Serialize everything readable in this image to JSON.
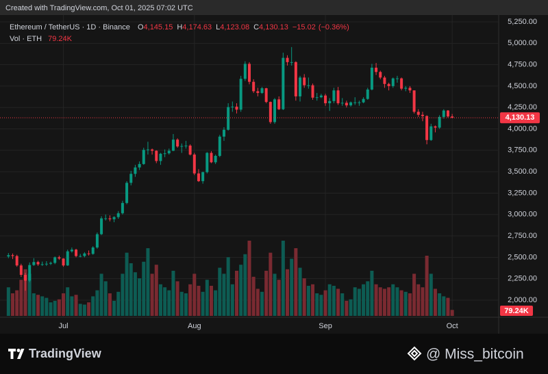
{
  "header": "Created with TradingView.com, Oct 01, 2025 07:02 UTC",
  "chart_data": {
    "type": "candlestick",
    "symbol": "Ethereum / TetherUS · 1D · Binance",
    "legend": [
      {
        "key": "O",
        "value": 4145.15,
        "label": "4,145.15"
      },
      {
        "key": "H",
        "value": 4174.63,
        "label": "4,174.63"
      },
      {
        "key": "L",
        "value": 4123.08,
        "label": "4,123.08"
      },
      {
        "key": "C",
        "value": 4130.13,
        "label": "4,130.13"
      }
    ],
    "change": {
      "value": -15.02,
      "label": "−15.02"
    },
    "change_pct": {
      "value": -0.36,
      "label": "(−0.36%)"
    },
    "volume_title": "Vol · ETH",
    "volume_last": {
      "value": 79.24,
      "label": "79.24K"
    },
    "open": [
      2510,
      2525,
      2515,
      2405,
      2295,
      2228,
      2410,
      2445,
      2418,
      2420,
      2425,
      2435,
      2500,
      2486,
      2405,
      2570,
      2590,
      2515,
      2515,
      2545,
      2540,
      2615,
      2770,
      2955,
      2955,
      2945,
      2970,
      3015,
      3135,
      3370,
      3475,
      3550,
      3590,
      3755,
      3760,
      3745,
      3625,
      3710,
      3715,
      3745,
      3875,
      3795,
      3800,
      3805,
      3700,
      3480,
      3390,
      3495,
      3720,
      3610,
      3685,
      3910,
      3990,
      4255,
      4260,
      4225,
      4585,
      4760,
      4550,
      4440,
      4420,
      4475,
      4315,
      4080,
      4345,
      4230,
      4830,
      4780,
      4780,
      4380,
      4600,
      4510,
      4510,
      4365,
      4370,
      4390,
      4300,
      4325,
      4450,
      4300,
      4305,
      4275,
      4310,
      4310,
      4310,
      4350,
      4460,
      4715,
      4665,
      4600,
      4525,
      4500,
      4590,
      4590,
      4470,
      4480,
      4450,
      4200,
      4165,
      4150,
      3870,
      4030,
      4015,
      4140,
      4215,
      4145.15
    ],
    "high": [
      2550,
      2545,
      2530,
      2425,
      2320,
      2440,
      2490,
      2460,
      2450,
      2455,
      2450,
      2510,
      2520,
      2490,
      2590,
      2615,
      2600,
      2540,
      2560,
      2580,
      2630,
      2790,
      2980,
      3000,
      2990,
      2980,
      3040,
      3160,
      3390,
      3510,
      3580,
      3620,
      3780,
      3850,
      3770,
      3750,
      3720,
      3760,
      3770,
      3940,
      3890,
      3830,
      3860,
      3820,
      3720,
      3530,
      3500,
      3730,
      3740,
      3700,
      3930,
      4020,
      4300,
      4320,
      4300,
      4620,
      4790,
      4780,
      4580,
      4480,
      4490,
      4480,
      4320,
      4360,
      4380,
      4890,
      4860,
      4956,
      4790,
      4620,
      4640,
      4600,
      4530,
      4420,
      4410,
      4410,
      4360,
      4480,
      4490,
      4360,
      4330,
      4320,
      4370,
      4330,
      4370,
      4480,
      4760,
      4770,
      4680,
      4620,
      4540,
      4600,
      4620,
      4600,
      4500,
      4500,
      4450,
      4230,
      4200,
      4160,
      4060,
      4040,
      4160,
      4230,
      4220,
      4174.63
    ],
    "low": [
      2490,
      2480,
      2390,
      2270,
      2110,
      2210,
      2400,
      2400,
      2400,
      2400,
      2410,
      2420,
      2470,
      2390,
      2400,
      2555,
      2500,
      2500,
      2500,
      2520,
      2530,
      2600,
      2760,
      2930,
      2920,
      2910,
      2950,
      3000,
      3120,
      3340,
      3440,
      3520,
      3580,
      3700,
      3700,
      3600,
      3580,
      3670,
      3700,
      3740,
      3780,
      3720,
      3770,
      3690,
      3460,
      3380,
      3360,
      3480,
      3600,
      3590,
      3670,
      3860,
      3980,
      4200,
      4180,
      4200,
      4560,
      4520,
      4420,
      4380,
      4410,
      4300,
      4060,
      4060,
      4220,
      4220,
      4740,
      4740,
      4330,
      4320,
      4480,
      4470,
      4340,
      4330,
      4360,
      4270,
      4210,
      4300,
      4280,
      4270,
      4250,
      4260,
      4280,
      4270,
      4300,
      4340,
      4450,
      4630,
      4580,
      4480,
      4450,
      4480,
      4540,
      4450,
      4440,
      4420,
      4180,
      4140,
      4090,
      3820,
      3860,
      3960,
      4000,
      4120,
      4130,
      4123.08
    ],
    "close": [
      2525,
      2515,
      2405,
      2295,
      2228,
      2410,
      2445,
      2418,
      2420,
      2425,
      2435,
      2500,
      2486,
      2405,
      2570,
      2590,
      2515,
      2515,
      2545,
      2540,
      2615,
      2770,
      2955,
      2955,
      2945,
      2970,
      3015,
      3135,
      3370,
      3475,
      3550,
      3590,
      3755,
      3760,
      3745,
      3625,
      3710,
      3715,
      3745,
      3875,
      3795,
      3800,
      3805,
      3700,
      3480,
      3390,
      3495,
      3720,
      3610,
      3685,
      3910,
      3990,
      4255,
      4260,
      4225,
      4585,
      4760,
      4550,
      4440,
      4420,
      4475,
      4315,
      4080,
      4345,
      4230,
      4830,
      4780,
      4780,
      4380,
      4600,
      4510,
      4510,
      4365,
      4370,
      4390,
      4300,
      4325,
      4450,
      4300,
      4305,
      4275,
      4310,
      4310,
      4310,
      4350,
      4460,
      4715,
      4665,
      4600,
      4525,
      4500,
      4590,
      4590,
      4470,
      4480,
      4450,
      4200,
      4165,
      4150,
      3870,
      4030,
      4015,
      4140,
      4215,
      4145.15,
      4130.13
    ],
    "volume": [
      380,
      300,
      340,
      480,
      620,
      560,
      300,
      280,
      260,
      240,
      180,
      200,
      220,
      300,
      380,
      260,
      280,
      160,
      150,
      180,
      260,
      340,
      560,
      460,
      300,
      200,
      320,
      560,
      840,
      700,
      580,
      500,
      720,
      900,
      560,
      680,
      420,
      380,
      340,
      600,
      460,
      320,
      300,
      420,
      560,
      400,
      320,
      480,
      400,
      340,
      640,
      560,
      780,
      420,
      600,
      680,
      820,
      1000,
      520,
      360,
      320,
      600,
      840,
      560,
      480,
      1000,
      620,
      760,
      900,
      640,
      500,
      400,
      420,
      300,
      280,
      340,
      420,
      400,
      360,
      300,
      200,
      220,
      380,
      360,
      420,
      460,
      600,
      420,
      380,
      360,
      380,
      420,
      380,
      340,
      320,
      300,
      560,
      420,
      380,
      800,
      560,
      360,
      300,
      260,
      240,
      79.24
    ],
    "colors": {
      "up": "#089981",
      "down": "#f23645",
      "up_volume": "#0d5c53",
      "down_volume": "#7a2a31"
    },
    "xlim": [
      -2,
      116
    ],
    "xticks": [
      {
        "value": 13,
        "label": "Jul"
      },
      {
        "value": 44,
        "label": "Aug"
      },
      {
        "value": 75,
        "label": "Sep"
      },
      {
        "value": 105,
        "label": "Oct"
      }
    ],
    "ylim": [
      1816,
      5330
    ],
    "yticks": [
      {
        "value": 2000,
        "label": "2,000.00"
      },
      {
        "value": 2250,
        "label": "2,250.00"
      },
      {
        "value": 2500,
        "label": "2,500.00"
      },
      {
        "value": 2750,
        "label": "2,750.00"
      },
      {
        "value": 3000,
        "label": "3,000.00"
      },
      {
        "value": 3250,
        "label": "3,250.00"
      },
      {
        "value": 3500,
        "label": "3,500.00"
      },
      {
        "value": 3750,
        "label": "3,750.00"
      },
      {
        "value": 4000,
        "label": "4,000.00"
      },
      {
        "value": 4250,
        "label": "4,250.00"
      },
      {
        "value": 4500,
        "label": "4,500.00"
      },
      {
        "value": 4750,
        "label": "4,750.00"
      },
      {
        "value": 5000,
        "label": "5,000.00"
      },
      {
        "value": 5250,
        "label": "5,250.00"
      }
    ],
    "last_price": {
      "value": 4130.13,
      "label": "4,130.13"
    },
    "grid": true
  },
  "footer": {
    "brand": "TradingView",
    "credit": "@ Miss_bitcoin"
  }
}
